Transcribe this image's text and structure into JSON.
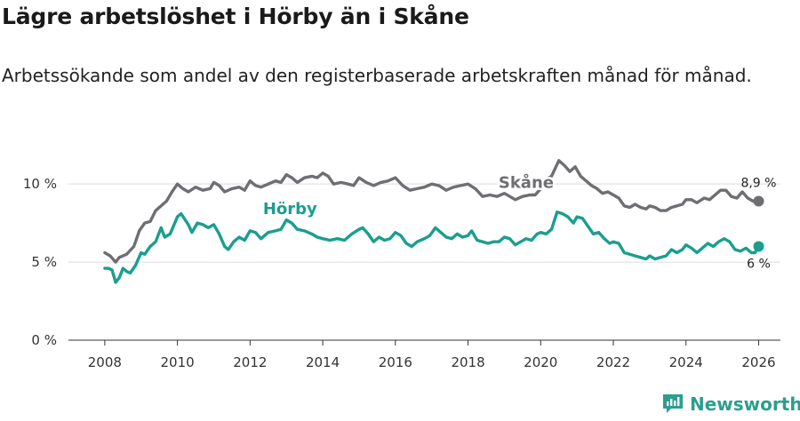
{
  "title": "Lägre arbetslöshet i Hörby än i Skåne",
  "subtitle": "Arbetssökande som andel av den registerbaserade arbetskraften månad för månad.",
  "brand": {
    "name": "Newsworthy",
    "icon": "newsworthy-logo-icon",
    "color": "#2c9e8f"
  },
  "chart_data": {
    "type": "line",
    "title": "Lägre arbetslöshet i Hörby än i Skåne",
    "xlabel": "",
    "ylabel": "",
    "xlim": [
      2007.0,
      2026.6
    ],
    "ylim": [
      0,
      12
    ],
    "x_ticks": [
      2008,
      2010,
      2012,
      2014,
      2016,
      2018,
      2020,
      2022,
      2024,
      2026
    ],
    "x_tick_labels": [
      "2008",
      "2010",
      "2012",
      "2014",
      "2016",
      "2018",
      "2020",
      "2022",
      "2024",
      "2026"
    ],
    "y_ticks": [
      0,
      5,
      10
    ],
    "y_tick_labels": [
      "0 %",
      "5 %",
      "10 %"
    ],
    "grid": true,
    "series": [
      {
        "name": "Skåne",
        "color": "#6e6e73",
        "end_label": "8,9 %",
        "points": [
          [
            2008.0,
            5.6
          ],
          [
            2008.15,
            5.4
          ],
          [
            2008.3,
            5.0
          ],
          [
            2008.4,
            5.3
          ],
          [
            2008.6,
            5.5
          ],
          [
            2008.8,
            6.0
          ],
          [
            2008.95,
            7.0
          ],
          [
            2009.1,
            7.5
          ],
          [
            2009.25,
            7.6
          ],
          [
            2009.4,
            8.3
          ],
          [
            2009.55,
            8.6
          ],
          [
            2009.7,
            8.9
          ],
          [
            2009.85,
            9.5
          ],
          [
            2010.0,
            10.0
          ],
          [
            2010.15,
            9.7
          ],
          [
            2010.3,
            9.5
          ],
          [
            2010.5,
            9.8
          ],
          [
            2010.7,
            9.6
          ],
          [
            2010.9,
            9.7
          ],
          [
            2011.0,
            10.1
          ],
          [
            2011.15,
            9.9
          ],
          [
            2011.3,
            9.5
          ],
          [
            2011.5,
            9.7
          ],
          [
            2011.7,
            9.8
          ],
          [
            2011.85,
            9.6
          ],
          [
            2012.0,
            10.2
          ],
          [
            2012.15,
            9.9
          ],
          [
            2012.3,
            9.8
          ],
          [
            2012.5,
            10.0
          ],
          [
            2012.7,
            10.2
          ],
          [
            2012.85,
            10.1
          ],
          [
            2013.0,
            10.6
          ],
          [
            2013.15,
            10.4
          ],
          [
            2013.3,
            10.1
          ],
          [
            2013.5,
            10.4
          ],
          [
            2013.7,
            10.5
          ],
          [
            2013.85,
            10.4
          ],
          [
            2014.0,
            10.7
          ],
          [
            2014.15,
            10.5
          ],
          [
            2014.3,
            10.0
          ],
          [
            2014.5,
            10.1
          ],
          [
            2014.7,
            10.0
          ],
          [
            2014.85,
            9.9
          ],
          [
            2015.0,
            10.4
          ],
          [
            2015.2,
            10.1
          ],
          [
            2015.4,
            9.9
          ],
          [
            2015.6,
            10.1
          ],
          [
            2015.8,
            10.2
          ],
          [
            2016.0,
            10.4
          ],
          [
            2016.2,
            9.9
          ],
          [
            2016.4,
            9.6
          ],
          [
            2016.6,
            9.7
          ],
          [
            2016.8,
            9.8
          ],
          [
            2017.0,
            10.0
          ],
          [
            2017.2,
            9.9
          ],
          [
            2017.4,
            9.6
          ],
          [
            2017.6,
            9.8
          ],
          [
            2017.8,
            9.9
          ],
          [
            2018.0,
            10.0
          ],
          [
            2018.2,
            9.7
          ],
          [
            2018.4,
            9.2
          ],
          [
            2018.6,
            9.3
          ],
          [
            2018.8,
            9.2
          ],
          [
            2019.0,
            9.4
          ],
          [
            2019.15,
            9.2
          ],
          [
            2019.3,
            9.0
          ],
          [
            2019.5,
            9.2
          ],
          [
            2019.7,
            9.3
          ],
          [
            2019.85,
            9.3
          ],
          [
            2020.0,
            9.7
          ],
          [
            2020.15,
            10.3
          ],
          [
            2020.3,
            10.5
          ],
          [
            2020.5,
            11.5
          ],
          [
            2020.65,
            11.2
          ],
          [
            2020.8,
            10.8
          ],
          [
            2020.95,
            11.1
          ],
          [
            2021.1,
            10.5
          ],
          [
            2021.25,
            10.2
          ],
          [
            2021.4,
            9.9
          ],
          [
            2021.55,
            9.7
          ],
          [
            2021.7,
            9.4
          ],
          [
            2021.85,
            9.5
          ],
          [
            2022.0,
            9.3
          ],
          [
            2022.15,
            9.1
          ],
          [
            2022.3,
            8.6
          ],
          [
            2022.45,
            8.5
          ],
          [
            2022.6,
            8.7
          ],
          [
            2022.75,
            8.5
          ],
          [
            2022.9,
            8.4
          ],
          [
            2023.0,
            8.6
          ],
          [
            2023.15,
            8.5
          ],
          [
            2023.3,
            8.3
          ],
          [
            2023.45,
            8.3
          ],
          [
            2023.6,
            8.5
          ],
          [
            2023.75,
            8.6
          ],
          [
            2023.9,
            8.7
          ],
          [
            2024.0,
            9.0
          ],
          [
            2024.15,
            9.0
          ],
          [
            2024.3,
            8.8
          ],
          [
            2024.5,
            9.1
          ],
          [
            2024.65,
            9.0
          ],
          [
            2024.8,
            9.3
          ],
          [
            2024.95,
            9.6
          ],
          [
            2025.1,
            9.6
          ],
          [
            2025.25,
            9.2
          ],
          [
            2025.4,
            9.1
          ],
          [
            2025.55,
            9.5
          ],
          [
            2025.7,
            9.1
          ],
          [
            2025.85,
            8.9
          ],
          [
            2026.0,
            8.9
          ]
        ]
      },
      {
        "name": "Hörby",
        "color": "#1a9e8f",
        "end_label": "6 %",
        "points": [
          [
            2008.0,
            4.6
          ],
          [
            2008.1,
            4.6
          ],
          [
            2008.2,
            4.5
          ],
          [
            2008.3,
            3.7
          ],
          [
            2008.4,
            4.0
          ],
          [
            2008.5,
            4.6
          ],
          [
            2008.6,
            4.4
          ],
          [
            2008.7,
            4.3
          ],
          [
            2008.85,
            4.8
          ],
          [
            2009.0,
            5.6
          ],
          [
            2009.1,
            5.5
          ],
          [
            2009.25,
            6.0
          ],
          [
            2009.4,
            6.3
          ],
          [
            2009.55,
            7.2
          ],
          [
            2009.65,
            6.6
          ],
          [
            2009.8,
            6.8
          ],
          [
            2010.0,
            7.9
          ],
          [
            2010.1,
            8.1
          ],
          [
            2010.3,
            7.4
          ],
          [
            2010.4,
            6.9
          ],
          [
            2010.55,
            7.5
          ],
          [
            2010.7,
            7.4
          ],
          [
            2010.85,
            7.2
          ],
          [
            2011.0,
            7.4
          ],
          [
            2011.15,
            6.8
          ],
          [
            2011.3,
            6.0
          ],
          [
            2011.4,
            5.8
          ],
          [
            2011.55,
            6.3
          ],
          [
            2011.7,
            6.6
          ],
          [
            2011.85,
            6.4
          ],
          [
            2012.0,
            7.0
          ],
          [
            2012.15,
            6.9
          ],
          [
            2012.3,
            6.5
          ],
          [
            2012.5,
            6.9
          ],
          [
            2012.7,
            7.0
          ],
          [
            2012.85,
            7.1
          ],
          [
            2013.0,
            7.7
          ],
          [
            2013.15,
            7.5
          ],
          [
            2013.3,
            7.1
          ],
          [
            2013.5,
            7.0
          ],
          [
            2013.7,
            6.8
          ],
          [
            2013.85,
            6.6
          ],
          [
            2014.0,
            6.5
          ],
          [
            2014.2,
            6.4
          ],
          [
            2014.4,
            6.5
          ],
          [
            2014.6,
            6.4
          ],
          [
            2014.8,
            6.8
          ],
          [
            2015.0,
            7.1
          ],
          [
            2015.1,
            7.2
          ],
          [
            2015.25,
            6.8
          ],
          [
            2015.4,
            6.3
          ],
          [
            2015.55,
            6.6
          ],
          [
            2015.7,
            6.4
          ],
          [
            2015.85,
            6.5
          ],
          [
            2016.0,
            6.9
          ],
          [
            2016.15,
            6.7
          ],
          [
            2016.3,
            6.2
          ],
          [
            2016.45,
            6.0
          ],
          [
            2016.6,
            6.3
          ],
          [
            2016.8,
            6.5
          ],
          [
            2016.95,
            6.7
          ],
          [
            2017.1,
            7.2
          ],
          [
            2017.25,
            6.9
          ],
          [
            2017.4,
            6.6
          ],
          [
            2017.55,
            6.5
          ],
          [
            2017.7,
            6.8
          ],
          [
            2017.85,
            6.6
          ],
          [
            2018.0,
            6.7
          ],
          [
            2018.1,
            7.0
          ],
          [
            2018.25,
            6.4
          ],
          [
            2018.4,
            6.3
          ],
          [
            2018.55,
            6.2
          ],
          [
            2018.7,
            6.3
          ],
          [
            2018.85,
            6.3
          ],
          [
            2019.0,
            6.6
          ],
          [
            2019.15,
            6.5
          ],
          [
            2019.3,
            6.1
          ],
          [
            2019.45,
            6.3
          ],
          [
            2019.6,
            6.5
          ],
          [
            2019.75,
            6.4
          ],
          [
            2019.9,
            6.8
          ],
          [
            2020.0,
            6.9
          ],
          [
            2020.15,
            6.8
          ],
          [
            2020.3,
            7.1
          ],
          [
            2020.45,
            8.2
          ],
          [
            2020.6,
            8.1
          ],
          [
            2020.75,
            7.9
          ],
          [
            2020.9,
            7.5
          ],
          [
            2021.0,
            7.9
          ],
          [
            2021.15,
            7.8
          ],
          [
            2021.3,
            7.3
          ],
          [
            2021.45,
            6.8
          ],
          [
            2021.6,
            6.9
          ],
          [
            2021.75,
            6.5
          ],
          [
            2021.9,
            6.2
          ],
          [
            2022.0,
            6.3
          ],
          [
            2022.15,
            6.2
          ],
          [
            2022.3,
            5.6
          ],
          [
            2022.45,
            5.5
          ],
          [
            2022.6,
            5.4
          ],
          [
            2022.75,
            5.3
          ],
          [
            2022.9,
            5.2
          ],
          [
            2023.0,
            5.4
          ],
          [
            2023.15,
            5.2
          ],
          [
            2023.3,
            5.3
          ],
          [
            2023.45,
            5.4
          ],
          [
            2023.6,
            5.8
          ],
          [
            2023.75,
            5.6
          ],
          [
            2023.9,
            5.8
          ],
          [
            2024.0,
            6.1
          ],
          [
            2024.15,
            5.9
          ],
          [
            2024.3,
            5.6
          ],
          [
            2024.45,
            5.9
          ],
          [
            2024.6,
            6.2
          ],
          [
            2024.75,
            6.0
          ],
          [
            2024.9,
            6.3
          ],
          [
            2025.05,
            6.5
          ],
          [
            2025.2,
            6.3
          ],
          [
            2025.35,
            5.8
          ],
          [
            2025.5,
            5.7
          ],
          [
            2025.65,
            5.9
          ],
          [
            2025.8,
            5.6
          ],
          [
            2025.9,
            5.6
          ],
          [
            2026.0,
            6.0
          ]
        ]
      }
    ],
    "annotations": [
      {
        "text": "Skåne",
        "series": "Skåne",
        "x": 2019.6
      },
      {
        "text": "Hörby",
        "series": "Hörby",
        "x": 2013.1
      }
    ]
  }
}
